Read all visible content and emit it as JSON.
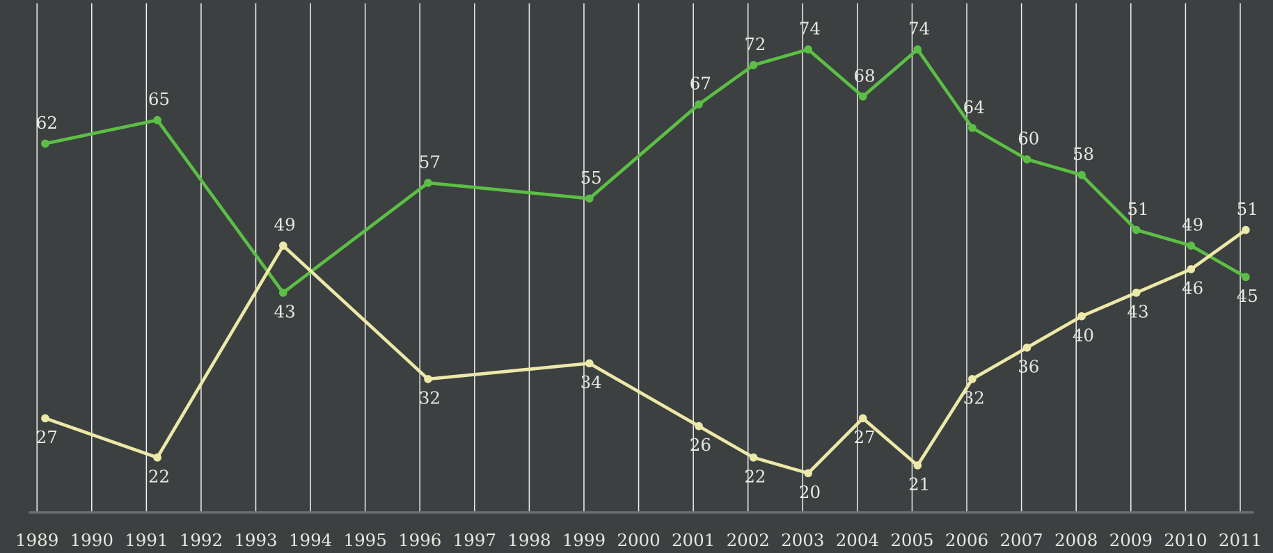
{
  "chart_data": {
    "type": "line",
    "x": [
      1989.15,
      1991.2,
      1993.5,
      1996.15,
      1999.1,
      2001.1,
      2002.1,
      2003.1,
      2004.1,
      2005.1,
      2006.1,
      2007.1,
      2008.1,
      2009.1,
      2010.1,
      2011.1
    ],
    "series": [
      {
        "color": "#5cbf45",
        "values": [
          62,
          65,
          43,
          57,
          55,
          67,
          72,
          74,
          68,
          74,
          64,
          60,
          58,
          51,
          49,
          45
        ]
      },
      {
        "color": "#ece9a8",
        "values": [
          27,
          22,
          49,
          32,
          34,
          26,
          22,
          20,
          27,
          21,
          32,
          36,
          40,
          43,
          46,
          51
        ]
      }
    ],
    "xlim": [
      1988.85,
      2011.25
    ],
    "xticks": [
      1989,
      1990,
      1991,
      1992,
      1993,
      1994,
      1995,
      1996,
      1997,
      1998,
      1999,
      2000,
      2001,
      2002,
      2003,
      2004,
      2005,
      2006,
      2007,
      2008,
      2009,
      2010,
      2011
    ],
    "ylim": [
      15,
      80.3
    ],
    "grid": true
  }
}
